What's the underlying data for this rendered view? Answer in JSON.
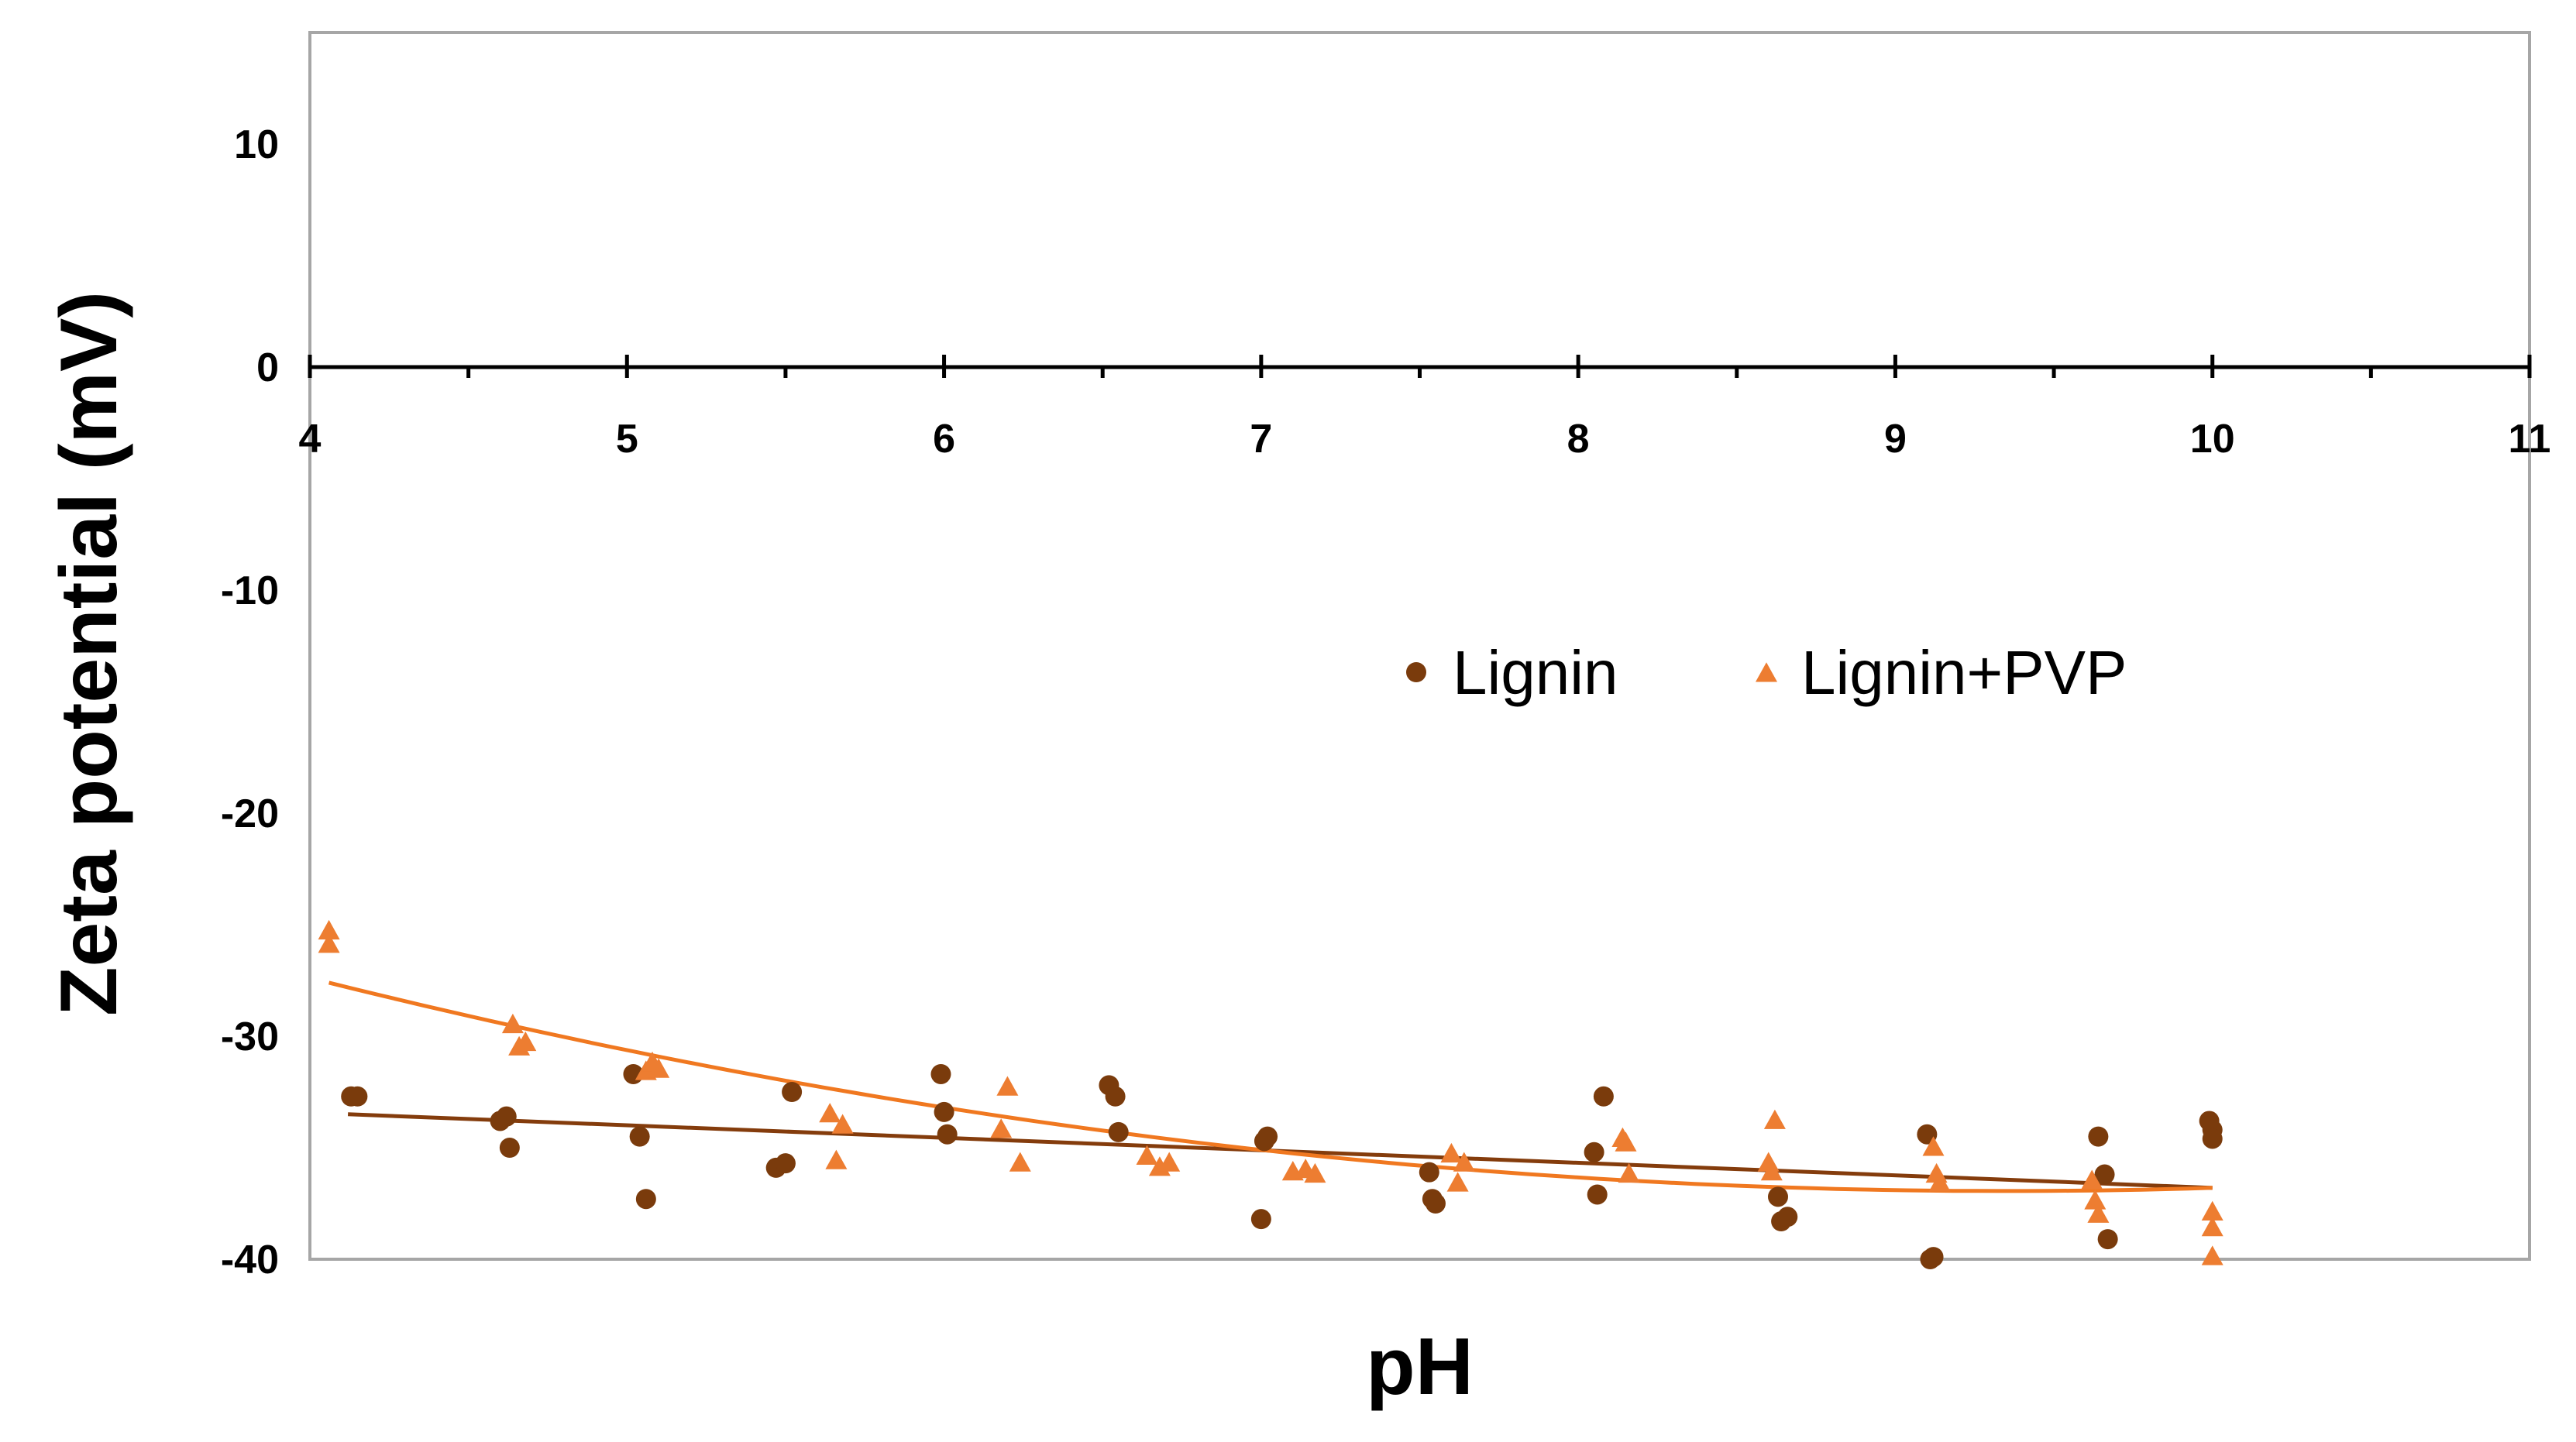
{
  "chart_data": {
    "type": "scatter",
    "title": "",
    "xlabel": "pH",
    "ylabel": "Zeta potential  (mV)",
    "xlim": [
      4,
      11
    ],
    "ylim": [
      -40,
      15
    ],
    "x_ticks": [
      4,
      5,
      6,
      7,
      8,
      9,
      10,
      11
    ],
    "y_ticks": [
      10,
      0,
      -10,
      -20,
      -30,
      -40
    ],
    "legend": {
      "placement": "center-right",
      "entries": [
        "Lignin",
        "Lignin+PVP"
      ]
    },
    "colors": {
      "lignin": "#7a3b0c",
      "lignin_pvp": "#ed7d31",
      "lignin_trend": "#843c0c",
      "lignin_pvp_trend": "#f07820",
      "frame": "#a6a6a6",
      "axis": "#000000"
    },
    "series": [
      {
        "name": "Lignin",
        "marker": "circle",
        "points": [
          {
            "x": 4.13,
            "y": -32.7
          },
          {
            "x": 4.15,
            "y": -32.7
          },
          {
            "x": 4.6,
            "y": -33.8
          },
          {
            "x": 4.62,
            "y": -33.6
          },
          {
            "x": 4.63,
            "y": -35.0
          },
          {
            "x": 5.02,
            "y": -31.7
          },
          {
            "x": 5.04,
            "y": -34.5
          },
          {
            "x": 5.06,
            "y": -37.3
          },
          {
            "x": 5.47,
            "y": -35.9
          },
          {
            "x": 5.5,
            "y": -35.7
          },
          {
            "x": 5.52,
            "y": -32.5
          },
          {
            "x": 5.99,
            "y": -31.7
          },
          {
            "x": 6.0,
            "y": -33.4
          },
          {
            "x": 6.01,
            "y": -34.4
          },
          {
            "x": 6.52,
            "y": -32.2
          },
          {
            "x": 6.54,
            "y": -32.7
          },
          {
            "x": 6.55,
            "y": -34.3
          },
          {
            "x": 7.0,
            "y": -38.2
          },
          {
            "x": 7.01,
            "y": -34.7
          },
          {
            "x": 7.02,
            "y": -34.5
          },
          {
            "x": 7.53,
            "y": -36.1
          },
          {
            "x": 7.54,
            "y": -37.3
          },
          {
            "x": 7.55,
            "y": -37.5
          },
          {
            "x": 8.05,
            "y": -35.2
          },
          {
            "x": 8.06,
            "y": -37.1
          },
          {
            "x": 8.08,
            "y": -32.7
          },
          {
            "x": 8.63,
            "y": -37.2
          },
          {
            "x": 8.64,
            "y": -38.3
          },
          {
            "x": 8.66,
            "y": -38.1
          },
          {
            "x": 9.1,
            "y": -34.4
          },
          {
            "x": 9.11,
            "y": -40.0
          },
          {
            "x": 9.12,
            "y": -39.9
          },
          {
            "x": 9.64,
            "y": -34.5
          },
          {
            "x": 9.66,
            "y": -36.2
          },
          {
            "x": 9.67,
            "y": -39.1
          },
          {
            "x": 9.99,
            "y": -33.8
          },
          {
            "x": 10.0,
            "y": -34.2
          },
          {
            "x": 10.0,
            "y": -34.6
          }
        ],
        "trendline": {
          "kind": "linear",
          "x_range": [
            4.12,
            10.0
          ],
          "y_start": -33.5,
          "y_end": -36.8
        }
      },
      {
        "name": "Lignin+PVP",
        "marker": "triangle",
        "points": [
          {
            "x": 4.06,
            "y": -25.3
          },
          {
            "x": 4.06,
            "y": -25.9
          },
          {
            "x": 4.64,
            "y": -29.5
          },
          {
            "x": 4.66,
            "y": -30.5
          },
          {
            "x": 4.68,
            "y": -30.3
          },
          {
            "x": 5.06,
            "y": -31.6
          },
          {
            "x": 5.08,
            "y": -31.2
          },
          {
            "x": 5.1,
            "y": -31.5
          },
          {
            "x": 5.64,
            "y": -33.5
          },
          {
            "x": 5.66,
            "y": -35.6
          },
          {
            "x": 5.68,
            "y": -34.0
          },
          {
            "x": 6.18,
            "y": -34.2
          },
          {
            "x": 6.2,
            "y": -32.3
          },
          {
            "x": 6.24,
            "y": -35.7
          },
          {
            "x": 6.64,
            "y": -35.4
          },
          {
            "x": 6.68,
            "y": -35.9
          },
          {
            "x": 6.71,
            "y": -35.7
          },
          {
            "x": 7.1,
            "y": -36.1
          },
          {
            "x": 7.14,
            "y": -36.0
          },
          {
            "x": 7.17,
            "y": -36.2
          },
          {
            "x": 7.6,
            "y": -35.3
          },
          {
            "x": 7.62,
            "y": -36.6
          },
          {
            "x": 7.64,
            "y": -35.7
          },
          {
            "x": 8.14,
            "y": -34.6
          },
          {
            "x": 8.15,
            "y": -34.8
          },
          {
            "x": 8.16,
            "y": -36.2
          },
          {
            "x": 8.6,
            "y": -35.7
          },
          {
            "x": 8.61,
            "y": -36.1
          },
          {
            "x": 8.62,
            "y": -33.8
          },
          {
            "x": 9.12,
            "y": -35.0
          },
          {
            "x": 9.13,
            "y": -36.2
          },
          {
            "x": 9.14,
            "y": -36.6
          },
          {
            "x": 9.62,
            "y": -36.5
          },
          {
            "x": 9.63,
            "y": -37.4
          },
          {
            "x": 9.64,
            "y": -38.0
          },
          {
            "x": 10.0,
            "y": -37.9
          },
          {
            "x": 10.0,
            "y": -38.6
          },
          {
            "x": 10.0,
            "y": -39.9
          }
        ],
        "trendline": {
          "kind": "quadratic",
          "x_range": [
            4.06,
            10.0
          ],
          "through": [
            [
              4.06,
              -27.6
            ],
            [
              7.0,
              -35.1
            ],
            [
              10.0,
              -36.8
            ]
          ]
        }
      }
    ]
  }
}
